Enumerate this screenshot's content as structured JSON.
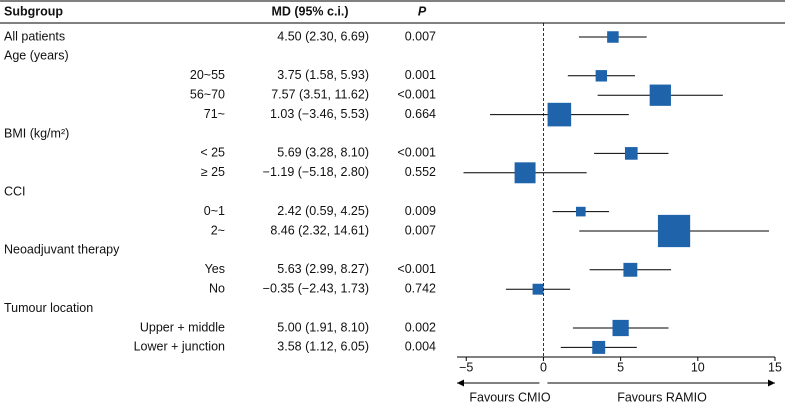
{
  "chart_data": {
    "type": "forest",
    "headers": {
      "subgroup": "Subgroup",
      "md": "MD (95% c.i.)",
      "p": "P"
    },
    "color": "#1f63aa",
    "rows": [
      {
        "label": "All patients",
        "md": 4.5,
        "lo": 2.3,
        "hi": 6.69,
        "text": "4.50 (2.30, 6.69)",
        "p": "0.007"
      },
      {
        "label": "Age (years)",
        "rows": [
          {
            "label": "20~55",
            "md": 3.75,
            "lo": 1.58,
            "hi": 5.93,
            "text": "3.75 (1.58, 5.93)",
            "p": "0.001"
          },
          {
            "label": "56~70",
            "md": 7.57,
            "lo": 3.51,
            "hi": 11.62,
            "text": "7.57 (3.51, 11.62)",
            "p": "<0.001"
          },
          {
            "label": "71~",
            "md": 1.03,
            "lo": -3.46,
            "hi": 5.53,
            "text": "1.03 (−3.46, 5.53)",
            "p": "0.664"
          }
        ]
      },
      {
        "label": "BMI (kg/m²)",
        "rows": [
          {
            "label": "< 25",
            "md": 5.69,
            "lo": 3.28,
            "hi": 8.1,
            "text": "5.69 (3.28, 8.10)",
            "p": "<0.001"
          },
          {
            "label": "≥ 25",
            "md": -1.19,
            "lo": -5.18,
            "hi": 2.8,
            "text": "−1.19 (−5.18, 2.80)",
            "p": "0.552"
          }
        ]
      },
      {
        "label": "CCI",
        "rows": [
          {
            "label": "0~1",
            "md": 2.42,
            "lo": 0.59,
            "hi": 4.25,
            "text": "2.42 (0.59, 4.25)",
            "p": "0.009"
          },
          {
            "label": "2~",
            "md": 8.46,
            "lo": 2.32,
            "hi": 14.61,
            "text": "8.46 (2.32, 14.61)",
            "p": "0.007"
          }
        ]
      },
      {
        "label": "Neoadjuvant therapy",
        "rows": [
          {
            "label": "Yes",
            "md": 5.63,
            "lo": 2.99,
            "hi": 8.27,
            "text": "5.63 (2.99, 8.27)",
            "p": "<0.001"
          },
          {
            "label": "No",
            "md": -0.35,
            "lo": -2.43,
            "hi": 1.73,
            "text": "−0.35 (−2.43, 1.73)",
            "p": "0.742"
          }
        ]
      },
      {
        "label": "Tumour location",
        "rows": [
          {
            "label": "Upper + middle",
            "md": 5.0,
            "lo": 1.91,
            "hi": 8.1,
            "text": "5.00 (1.91, 8.10)",
            "p": "0.002"
          },
          {
            "label": "Lower + junction",
            "md": 3.58,
            "lo": 1.12,
            "hi": 6.05,
            "text": "3.58 (1.12, 6.05)",
            "p": "0.004"
          }
        ]
      }
    ],
    "xlim": [
      -5.6,
      15
    ],
    "xticks": [
      {
        "value": -5,
        "label": "−5"
      },
      0,
      5,
      10,
      15
    ],
    "favours": {
      "left": "Favours CMIO",
      "right": "Favours RAMIO"
    }
  }
}
